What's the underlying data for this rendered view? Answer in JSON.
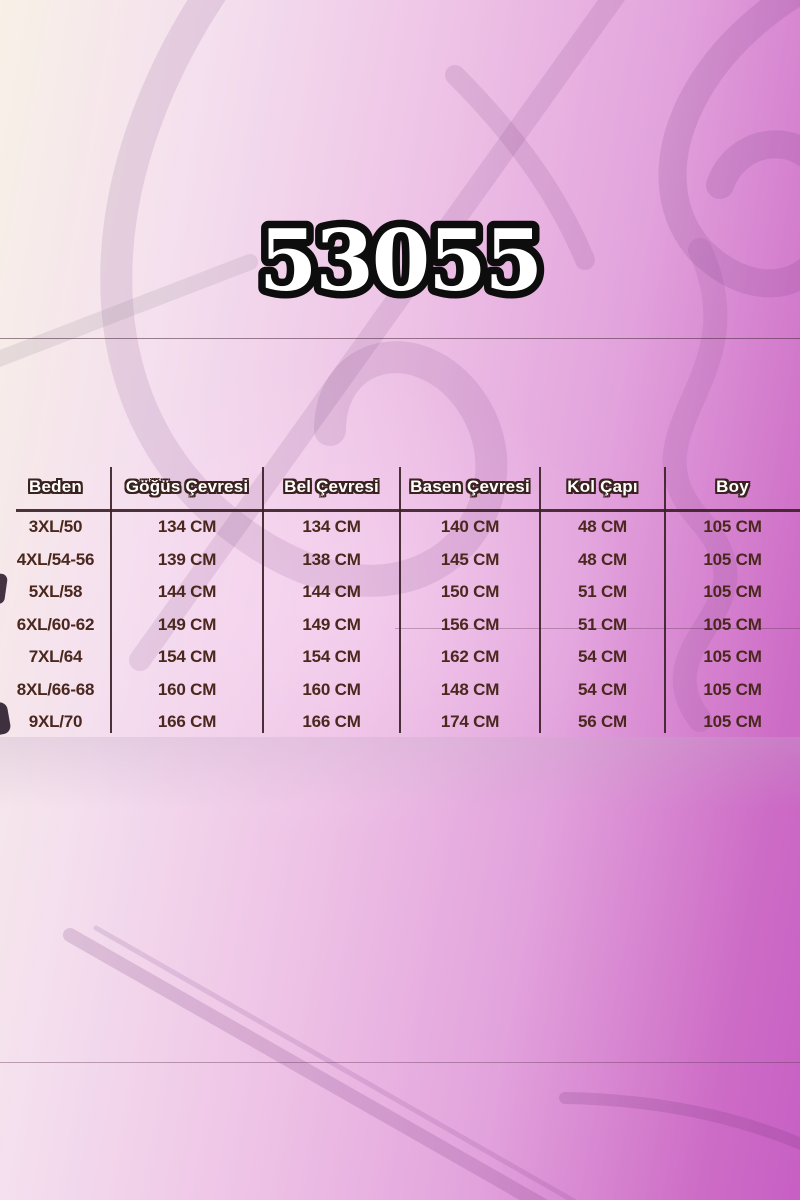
{
  "product_code": "53055",
  "chart_data": {
    "type": "table",
    "title": "53055",
    "columns": [
      "Beden",
      "Göğüs Çevresi",
      "Bel Çevresi",
      "Basen Çevresi",
      "Kol Çapı",
      "Boy"
    ],
    "rows": [
      [
        "3XL/50",
        "134 CM",
        "134 CM",
        "140 CM",
        "48 CM",
        "105 CM"
      ],
      [
        "4XL/54-56",
        "139 CM",
        "138 CM",
        "145 CM",
        "48 CM",
        "105 CM"
      ],
      [
        "5XL/58",
        "144 CM",
        "144 CM",
        "150 CM",
        "51 CM",
        "105 CM"
      ],
      [
        "6XL/60-62",
        "149 CM",
        "149 CM",
        "156 CM",
        "51 CM",
        "105 CM"
      ],
      [
        "7XL/64",
        "154 CM",
        "154 CM",
        "162 CM",
        "54 CM",
        "105 CM"
      ],
      [
        "8XL/66-68",
        "160 CM",
        "160 CM",
        "148 CM",
        "54 CM",
        "105 CM"
      ],
      [
        "9XL/70",
        "166 CM",
        "166 CM",
        "174 CM",
        "56 CM",
        "105 CM"
      ]
    ]
  },
  "colors": {
    "bg_left": "#f8f1e7",
    "bg_pink": "#eec3e6",
    "bg_magenta": "#c75fc4",
    "header_text": "#ffffff",
    "header_outline": "#3a221e",
    "row_text": "#4a281e",
    "divider": "#3c2228",
    "code_fill": "#ffffff",
    "code_outline": "#0d0d0d"
  }
}
